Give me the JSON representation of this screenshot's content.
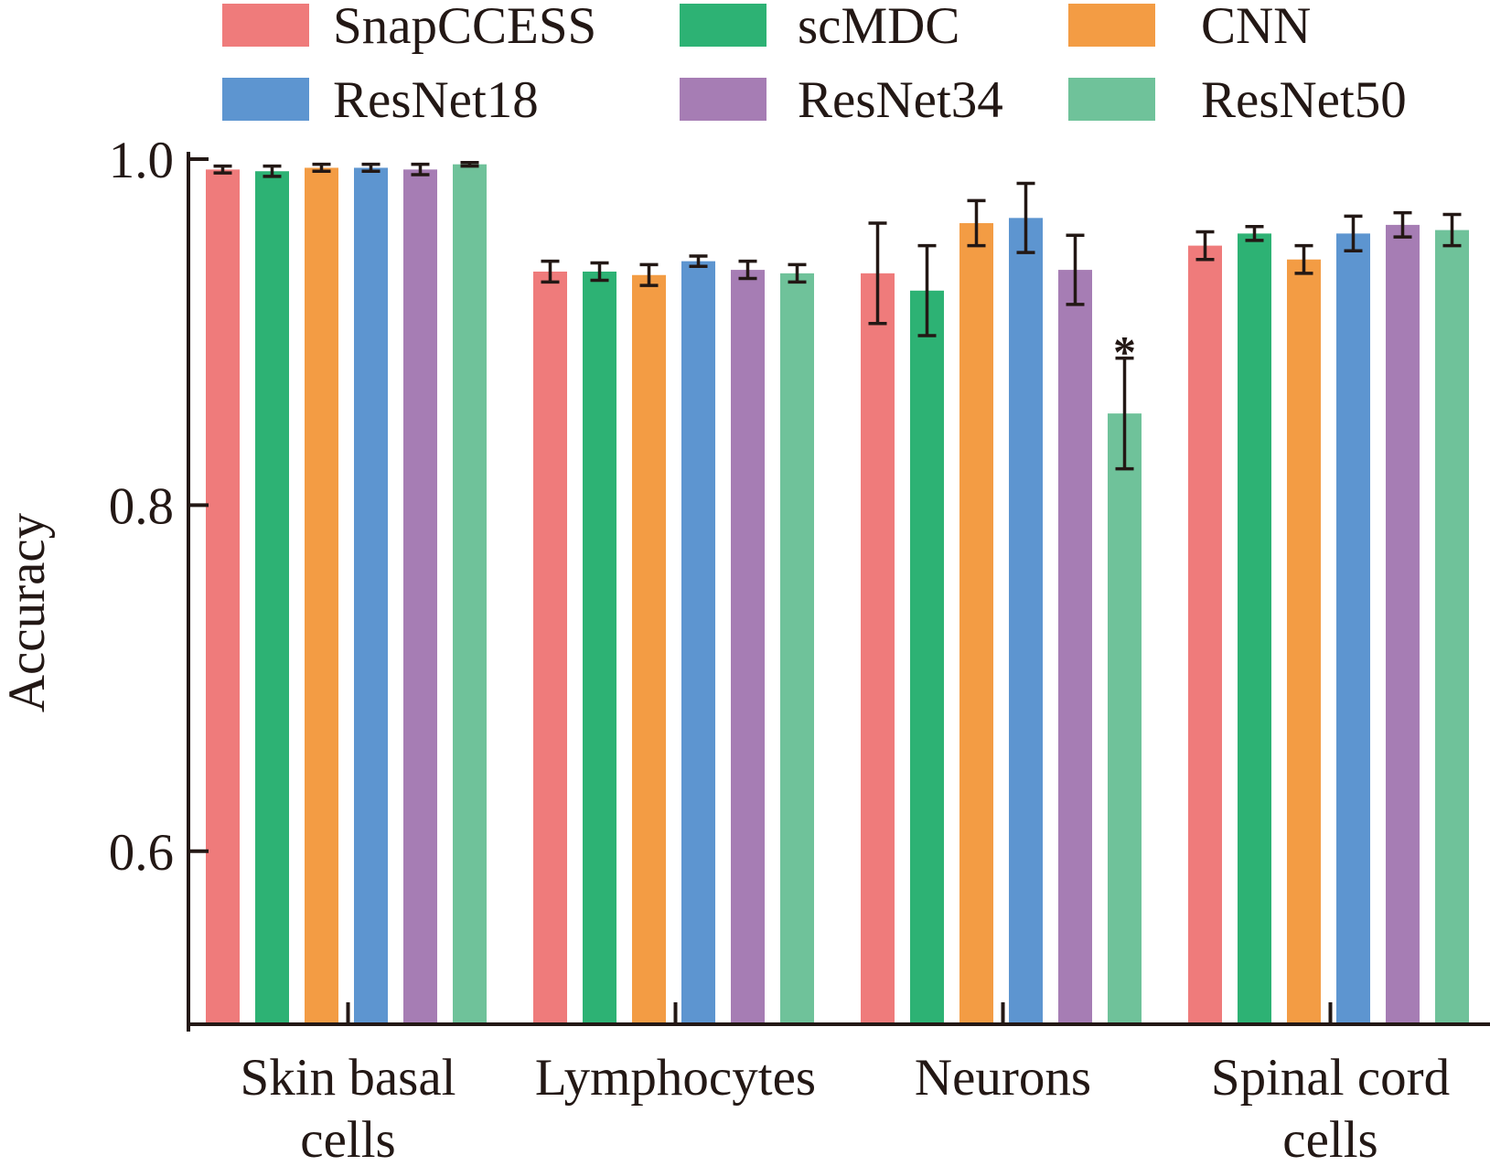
{
  "chart_data": {
    "type": "bar",
    "title": "",
    "xlabel": "",
    "ylabel": "Accuracy",
    "ylim": [
      0.5,
      1.0
    ],
    "yticks": [
      0.6,
      0.8,
      1.0
    ],
    "ytick_labels": [
      "0.6",
      "0.8",
      "1.0"
    ],
    "grid": false,
    "legend_position": "top",
    "categories": [
      [
        "Skin basal",
        "cells"
      ],
      [
        "Lymphocytes"
      ],
      [
        "Neurons"
      ],
      [
        "Spinal cord",
        "cells"
      ]
    ],
    "series": [
      {
        "name": "SnapCCESS",
        "color": "#ef7b7b",
        "values": [
          0.994,
          0.935,
          0.934,
          0.95
        ],
        "errors": [
          0.002,
          0.006,
          0.029,
          0.008
        ]
      },
      {
        "name": "scMDC",
        "color": "#2db274",
        "values": [
          0.993,
          0.935,
          0.924,
          0.957
        ],
        "errors": [
          0.003,
          0.005,
          0.026,
          0.004
        ]
      },
      {
        "name": "CNN",
        "color": "#f39c44",
        "values": [
          0.995,
          0.933,
          0.963,
          0.942
        ],
        "errors": [
          0.002,
          0.006,
          0.013,
          0.008
        ]
      },
      {
        "name": "ResNet18",
        "color": "#5d95d0",
        "values": [
          0.995,
          0.941,
          0.966,
          0.957
        ],
        "errors": [
          0.002,
          0.003,
          0.02,
          0.01
        ]
      },
      {
        "name": "ResNet34",
        "color": "#a67db4",
        "values": [
          0.994,
          0.936,
          0.936,
          0.962
        ],
        "errors": [
          0.003,
          0.005,
          0.02,
          0.007
        ]
      },
      {
        "name": "ResNet50",
        "color": "#6fc29a",
        "values": [
          0.997,
          0.934,
          0.853,
          0.959
        ],
        "errors": [
          0.001,
          0.005,
          0.032,
          0.009
        ]
      }
    ],
    "annotations": [
      {
        "text": "*",
        "category": "Neurons",
        "series": "ResNet50"
      }
    ]
  }
}
